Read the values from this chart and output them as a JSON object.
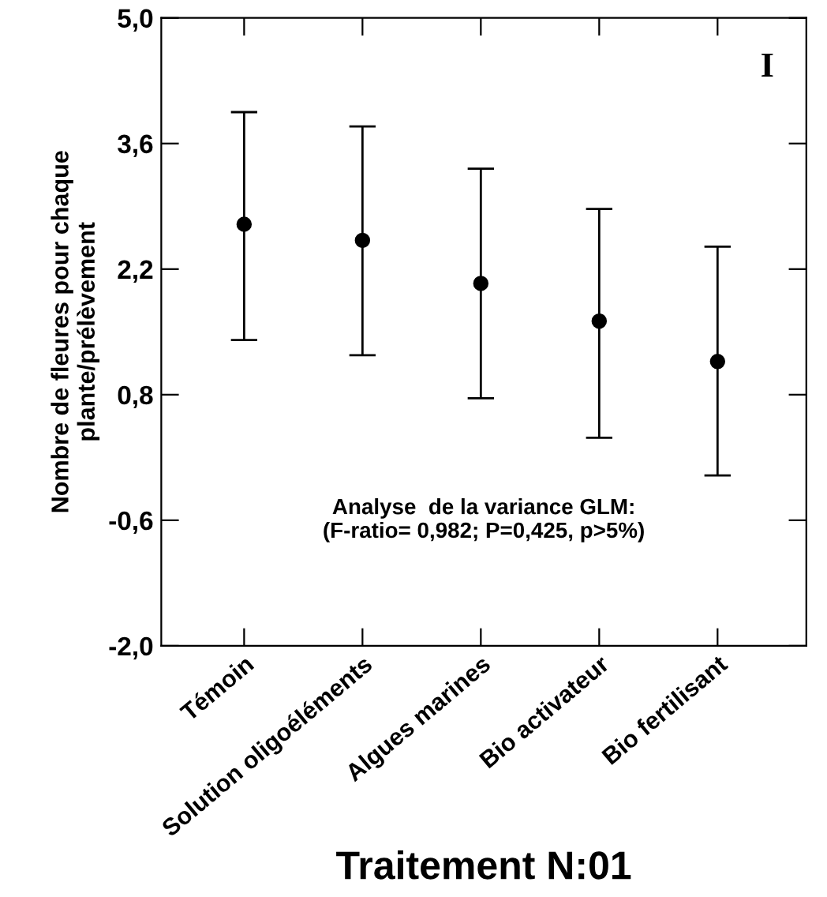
{
  "chart_data": {
    "type": "scatter",
    "xlabel": "Traitement N:01",
    "ylabel": "Nombre de fleures pour chaque\nplante/prélèvement",
    "categories": [
      "Témoin",
      "Solution oligoéléments",
      "Algues marines",
      "Bio activateur",
      "Bio fertilisant"
    ],
    "values": [
      2.7,
      2.52,
      2.04,
      1.62,
      1.17
    ],
    "errors": [
      [
        1.41,
        3.95
      ],
      [
        1.24,
        3.79
      ],
      [
        0.76,
        3.32
      ],
      [
        0.32,
        2.87
      ],
      [
        -0.1,
        2.45
      ]
    ],
    "color": "#000000",
    "marker": "circle",
    "grid": false,
    "ylim": [
      -2.0,
      5.0
    ],
    "yticks": [
      {
        "value": -2.0,
        "label": "-2,0"
      },
      {
        "value": -0.6,
        "label": "-0,6"
      },
      {
        "value": 0.8,
        "label": "0,8"
      },
      {
        "value": 2.2,
        "label": "2,2"
      },
      {
        "value": 3.6,
        "label": "3,6"
      },
      {
        "value": 5.0,
        "label": "5,0"
      }
    ],
    "annotations": [
      "I",
      "Analyse  de la variance GLM:\n(F-ratio= 0,982; P=0,425, p>5%)"
    ]
  }
}
